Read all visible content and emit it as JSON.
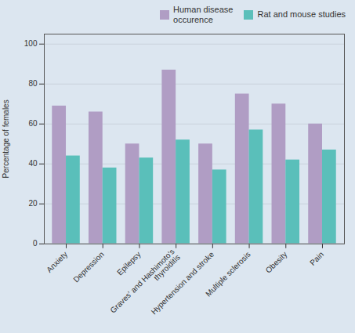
{
  "chart_data": {
    "type": "bar",
    "categories": [
      "Anxiety",
      "Depression",
      "Epilepsy",
      "Graves' and Hashimoto's\nthyroiditis",
      "Hypertension and stroke",
      "Multiple sclerosis",
      "Obesity",
      "Pain"
    ],
    "series": [
      {
        "name": "Human disease\noccurence",
        "color": "#b09dc4",
        "values": [
          69,
          66,
          50,
          87,
          50,
          75,
          70,
          60
        ]
      },
      {
        "name": "Rat and mouse studies",
        "color": "#5abfba",
        "values": [
          44,
          38,
          43,
          52,
          37,
          57,
          42,
          47
        ]
      }
    ],
    "ylabel": "Percentage of females",
    "ylim": [
      0,
      105
    ],
    "yticks": [
      0,
      20,
      40,
      60,
      80,
      100
    ],
    "grid": true,
    "legend": "upper right"
  }
}
